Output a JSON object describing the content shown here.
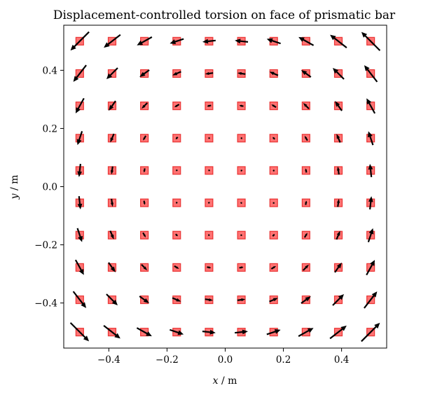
{
  "chart_data": {
    "type": "quiver",
    "title": "Displacement-controlled torsion on face of prismatic bar",
    "xlabel_var": "x",
    "xlabel_unit": " / m",
    "ylabel_var": "y",
    "ylabel_unit": " / m",
    "xlim": [
      -0.555,
      0.555
    ],
    "ylim": [
      -0.555,
      0.555
    ],
    "xticks": [
      -0.4,
      -0.2,
      0.0,
      0.2,
      0.4
    ],
    "yticks": [
      -0.4,
      -0.2,
      0.0,
      0.2,
      0.4
    ],
    "xtick_labels": [
      "−0.4",
      "−0.2",
      "0.0",
      "0.2",
      "0.4"
    ],
    "ytick_labels": [
      "−0.4",
      "−0.2",
      "0.0",
      "0.2",
      "0.4"
    ],
    "grid": false,
    "points_x": [
      -0.5,
      -0.3889,
      -0.2778,
      -0.1667,
      -0.0556,
      0.0556,
      0.1667,
      0.2778,
      0.3889,
      0.5
    ],
    "points_y": [
      -0.5,
      -0.3889,
      -0.2778,
      -0.1667,
      -0.0556,
      0.0556,
      0.1667,
      0.2778,
      0.3889,
      0.5
    ],
    "field": "u = -y·r, v = x·r (rotational displacement about origin)",
    "marker_color": "#ff0000",
    "arrow_color": "#000000"
  }
}
